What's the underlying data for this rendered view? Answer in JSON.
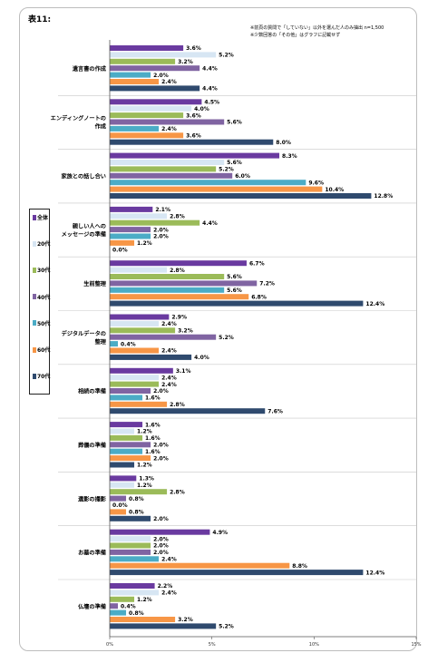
{
  "title": "表11:",
  "notes": [
    "※前頁の質問で「していない」以外を選んだ人のみ抽出 n=1,500",
    "※少数回答の「その他」はグラフに記載せず"
  ],
  "chart_data": {
    "type": "bar",
    "orientation": "horizontal",
    "categories": [
      "遺言書の作成",
      "エンディングノートの作成",
      "家族との話し合い",
      "親しい人へのメッセージの準備",
      "生前整理",
      "デジタルデータの整理",
      "相続の準備",
      "葬儀の準備",
      "遺影の撮影",
      "お墓の準備",
      "仏壇の準備"
    ],
    "category_lines": [
      [
        "遺言書の作成"
      ],
      [
        "エンディングノートの",
        "作成"
      ],
      [
        "家族との話し合い"
      ],
      [
        "親しい人への",
        "メッセージの準備"
      ],
      [
        "生前整理"
      ],
      [
        "デジタルデータの",
        "整理"
      ],
      [
        "相続の準備"
      ],
      [
        "葬儀の準備"
      ],
      [
        "遺影の撮影"
      ],
      [
        "お墓の準備"
      ],
      [
        "仏壇の準備"
      ]
    ],
    "series": [
      {
        "name": "全体",
        "color": "#6a3aa0",
        "values": [
          3.6,
          4.5,
          8.3,
          2.1,
          6.7,
          2.9,
          3.1,
          1.6,
          1.3,
          4.9,
          2.2
        ]
      },
      {
        "name": "20代",
        "color": "#d7e6f3",
        "values": [
          5.2,
          4.0,
          5.6,
          2.8,
          2.8,
          2.4,
          2.4,
          1.2,
          1.2,
          2.0,
          2.4
        ]
      },
      {
        "name": "30代",
        "color": "#9bbb59",
        "values": [
          3.2,
          3.6,
          5.2,
          4.4,
          5.6,
          3.2,
          2.4,
          1.6,
          2.8,
          2.0,
          1.2
        ]
      },
      {
        "name": "40代",
        "color": "#8064a2",
        "values": [
          4.4,
          5.6,
          6.0,
          2.0,
          7.2,
          5.2,
          2.0,
          2.0,
          0.8,
          2.0,
          0.4
        ]
      },
      {
        "name": "50代",
        "color": "#4bacc6",
        "values": [
          2.0,
          2.4,
          9.6,
          2.0,
          5.6,
          0.4,
          1.6,
          1.6,
          0.0,
          2.4,
          0.8
        ]
      },
      {
        "name": "60代",
        "color": "#f79646",
        "values": [
          2.4,
          3.6,
          10.4,
          1.2,
          6.8,
          2.4,
          2.8,
          2.0,
          0.8,
          8.8,
          3.2
        ]
      },
      {
        "name": "70代",
        "color": "#2f4a6e",
        "values": [
          4.4,
          8.0,
          12.8,
          0.0,
          12.4,
          4.0,
          7.6,
          1.2,
          2.0,
          12.4,
          5.2
        ]
      }
    ],
    "value_labels": [
      [
        "3.6%",
        "5.2%",
        "3.2%",
        "4.4%",
        "2.0%",
        "2.4%",
        "4.4%"
      ],
      [
        "4.5%",
        "4.0%",
        "3.6%",
        "5.6%",
        "2.4%",
        "3.6%",
        "8.0%"
      ],
      [
        "8.3%",
        "5.6%",
        "5.2%",
        "6.0%",
        "9.6%",
        "10.4%",
        "12.8%"
      ],
      [
        "2.1%",
        "2.8%",
        "4.4%",
        "2.0%",
        "2.0%",
        "1.2%",
        "0.0%"
      ],
      [
        "6.7%",
        "2.8%",
        "5.6%",
        "7.2%",
        "5.6%",
        "6.8%",
        "12.4%"
      ],
      [
        "2.9%",
        "2.4%",
        "3.2%",
        "5.2%",
        "0.4%",
        "2.4%",
        "4.0%"
      ],
      [
        "3.1%",
        "2.4%",
        "2.4%",
        "2.0%",
        "1.6%",
        "2.8%",
        "7.6%"
      ],
      [
        "1.6%",
        "1.2%",
        "1.6%",
        "2.0%",
        "1.6%",
        "2.0%",
        "1.2%"
      ],
      [
        "1.3%",
        "1.2%",
        "2.8%",
        "0.8%",
        "0.0%",
        "0.8%",
        "2.0%"
      ],
      [
        "4.9%",
        "2.0%",
        "2.0%",
        "2.0%",
        "2.4%",
        "8.8%",
        "12.4%"
      ],
      [
        "2.2%",
        "2.4%",
        "1.2%",
        "0.4%",
        "0.8%",
        "3.2%",
        "5.2%"
      ]
    ],
    "x_ticks": [
      0,
      5,
      10,
      15
    ],
    "x_tick_labels": [
      "0%",
      "5%",
      "10%",
      "15%"
    ],
    "xlim": [
      0,
      15
    ],
    "legend_position": "left",
    "grid": false
  }
}
